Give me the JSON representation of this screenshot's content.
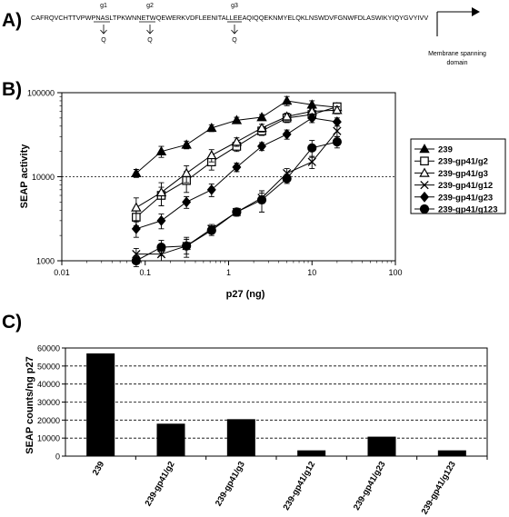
{
  "panel_a": {
    "label": "A)",
    "sequence": "CAFRQVCHTTVPWPNASLTPKWNNETWQEWERKVDFLEENITALLEEAQIQQEKNMYELQKLNSWDVFGNWFDLASWIKYIQYGVYIVV",
    "sites": [
      {
        "name": "g1",
        "motif": "NAS",
        "mutation": "Q"
      },
      {
        "name": "g2",
        "motif": "NET",
        "mutation": "Q"
      },
      {
        "name": "g3",
        "motif": "NIT",
        "mutation": "Q"
      }
    ],
    "membrane_label_line1": "Membrane spanning",
    "membrane_label_line2": "domain"
  },
  "chart_data": [
    {
      "panel_label": "B)",
      "type": "line",
      "xlabel": "p27 (ng)",
      "ylabel": "SEAP activity",
      "xscale": "log",
      "yscale": "log",
      "xlim": [
        0.01,
        100
      ],
      "ylim": [
        1000,
        100000
      ],
      "x_tick_labels": [
        "0.01",
        "0.1",
        "1",
        "10",
        "100"
      ],
      "y_tick_labels": [
        "1000",
        "10000",
        "100000"
      ],
      "reference_line_y": 10000,
      "legend_position": "right",
      "x": [
        0.078,
        0.156,
        0.3125,
        0.625,
        1.25,
        2.5,
        5,
        10,
        20
      ],
      "series": [
        {
          "name": "239",
          "marker": "filled-triangle",
          "values": [
            11000,
            20000,
            24000,
            38000,
            47000,
            51000,
            80000,
            72000,
            67000
          ],
          "errors": [
            1200,
            3000,
            2500,
            3500,
            4000,
            4000,
            10000,
            8000,
            6000
          ]
        },
        {
          "name": "239-gp41/g2",
          "marker": "open-square",
          "values": [
            3300,
            6000,
            9000,
            15000,
            23000,
            35000,
            50000,
            55000,
            68000
          ],
          "errors": [
            700,
            1500,
            2500,
            3000,
            3000,
            4000,
            6000,
            8000,
            6000
          ]
        },
        {
          "name": "239-gp41/g3",
          "marker": "open-triangle",
          "values": [
            4300,
            6500,
            11000,
            18000,
            26000,
            38000,
            52000,
            60000,
            62000
          ],
          "errors": [
            1300,
            2000,
            2500,
            3000,
            3000,
            4000,
            5000,
            7000,
            6000
          ]
        },
        {
          "name": "239-gp41/g12",
          "marker": "x",
          "values": [
            1200,
            1200,
            1500,
            2400,
            3800,
            5600,
            11000,
            15000,
            35000
          ],
          "errors": [
            200,
            200,
            300,
            300,
            400,
            800,
            1500,
            2500,
            5000
          ]
        },
        {
          "name": "239-gp41/g23",
          "marker": "filled-diamond",
          "values": [
            2400,
            3000,
            5000,
            7000,
            13000,
            23000,
            32000,
            50000,
            45000
          ],
          "errors": [
            500,
            600,
            800,
            1200,
            1500,
            2500,
            4000,
            6000,
            5000
          ]
        },
        {
          "name": "239-gp41/g123",
          "marker": "filled-circle",
          "values": [
            1000,
            1450,
            1500,
            2300,
            3800,
            5300,
            9500,
            22000,
            26000
          ],
          "errors": [
            150,
            300,
            400,
            300,
            400,
            1500,
            1200,
            5000,
            4000
          ]
        }
      ]
    },
    {
      "panel_label": "C)",
      "type": "bar",
      "ylabel": "SEAP counts/ng p27",
      "ylim": [
        0,
        60000
      ],
      "y_tick_labels": [
        "0",
        "10000",
        "20000",
        "30000",
        "40000",
        "50000",
        "60000"
      ],
      "grid": "horizontal dashed",
      "categories": [
        "239",
        "239-gp41/g2",
        "239-gp41/g3",
        "239-gp41/g12",
        "239-gp41/g23",
        "239-gp41/g123"
      ],
      "values": [
        57000,
        18000,
        20500,
        3200,
        10800,
        3200
      ]
    }
  ],
  "colors": {
    "ink": "#000000",
    "background": "#ffffff"
  }
}
